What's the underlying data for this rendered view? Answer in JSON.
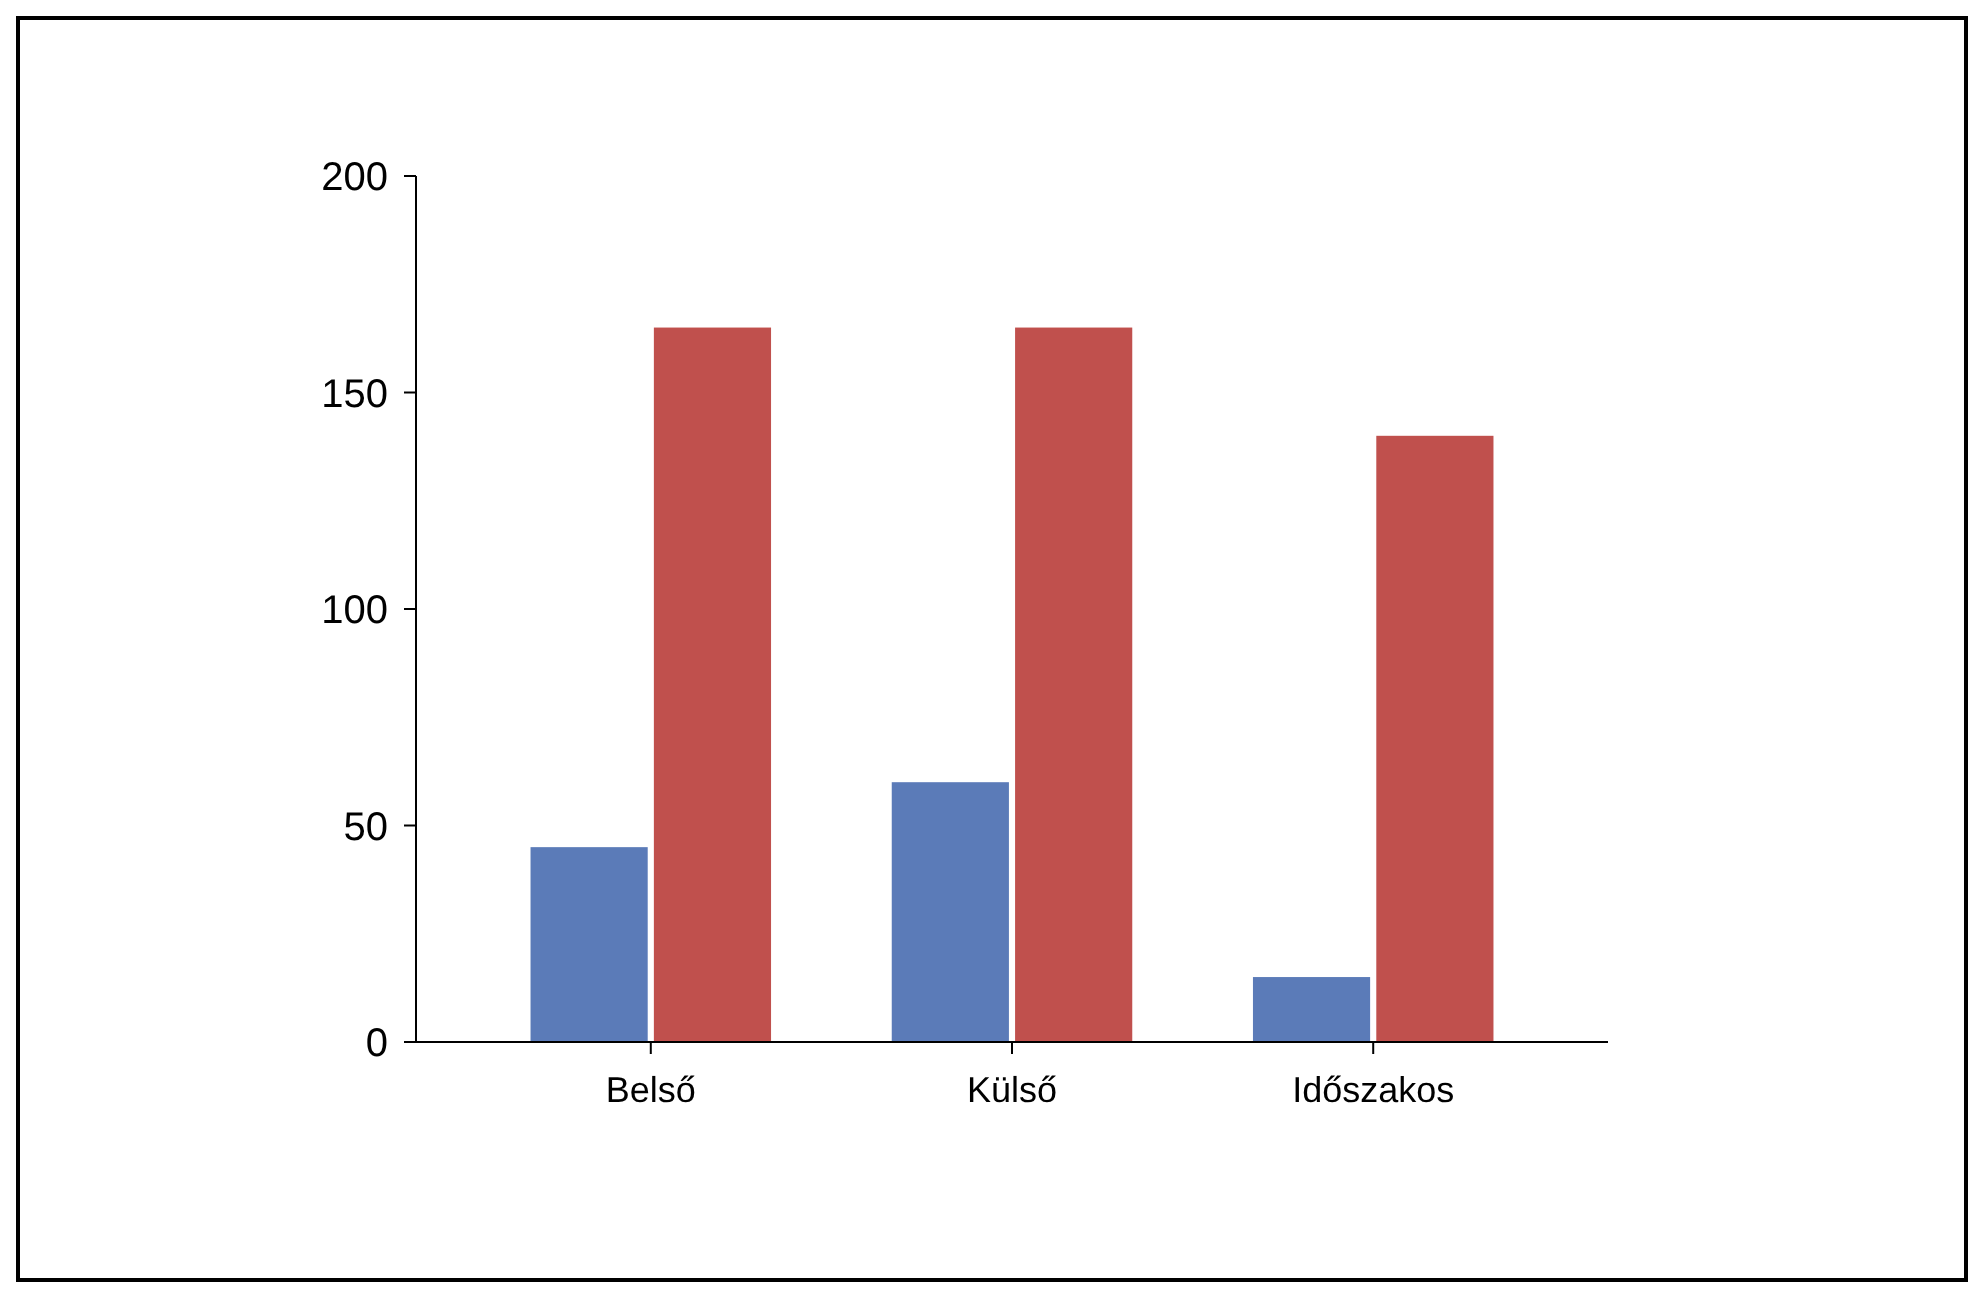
{
  "chart_data": {
    "type": "bar",
    "categories": [
      "Belső",
      "Külső",
      "Időszakos"
    ],
    "series": [
      {
        "color": "#5b7bb8",
        "values": [
          45,
          60,
          15
        ]
      },
      {
        "color": "#c0504d",
        "values": [
          165,
          165,
          140
        ]
      }
    ],
    "ylim": [
      0,
      200
    ],
    "yticks": [
      0,
      50,
      100,
      150,
      200
    ],
    "grid": false
  }
}
